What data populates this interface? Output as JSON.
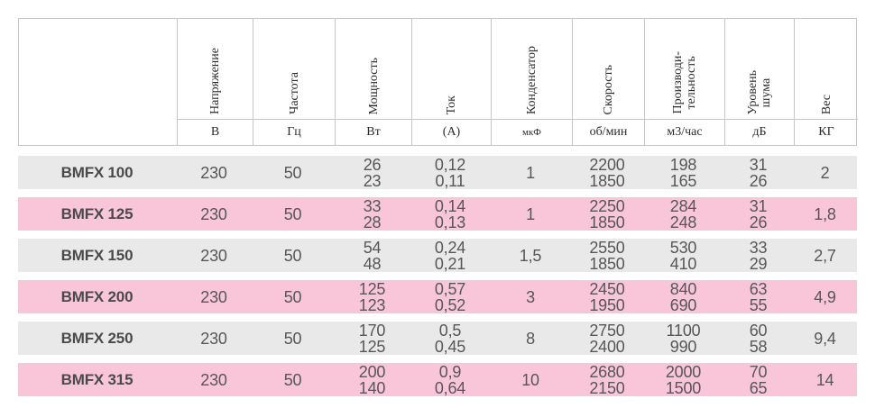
{
  "table": {
    "columns": [
      {
        "name": "Напряжение",
        "unit": "В"
      },
      {
        "name": "Частота",
        "unit": "Гц"
      },
      {
        "name": "Мощность",
        "unit": "Вт"
      },
      {
        "name": "Ток",
        "unit": "(А)"
      },
      {
        "name": "Конденсатор",
        "unit": "мкФ"
      },
      {
        "name": "Скорость",
        "unit": "об/мин"
      },
      {
        "name": "Производи-\nтельность",
        "unit": "м3/час"
      },
      {
        "name": "Уровень\nшума",
        "unit": "дБ"
      },
      {
        "name": "Вес",
        "unit": "КГ"
      }
    ],
    "rows": [
      {
        "model": "BMFX 100",
        "voltage": "230",
        "frequency": "50",
        "power": [
          "26",
          "23"
        ],
        "current": [
          "0,12",
          "0,11"
        ],
        "capacitor": "1",
        "speed": [
          "2200",
          "1850"
        ],
        "airflow": [
          "198",
          "165"
        ],
        "noise": [
          "31",
          "26"
        ],
        "weight": "2"
      },
      {
        "model": "BMFX 125",
        "voltage": "230",
        "frequency": "50",
        "power": [
          "33",
          "28"
        ],
        "current": [
          "0,14",
          "0,13"
        ],
        "capacitor": "1",
        "speed": [
          "2250",
          "1850"
        ],
        "airflow": [
          "284",
          "248"
        ],
        "noise": [
          "31",
          "26"
        ],
        "weight": "1,8"
      },
      {
        "model": "BMFX 150",
        "voltage": "230",
        "frequency": "50",
        "power": [
          "54",
          "48"
        ],
        "current": [
          "0,24",
          "0,21"
        ],
        "capacitor": "1,5",
        "speed": [
          "2550",
          "1850"
        ],
        "airflow": [
          "530",
          "410"
        ],
        "noise": [
          "33",
          "29"
        ],
        "weight": "2,7"
      },
      {
        "model": "BMFX 200",
        "voltage": "230",
        "frequency": "50",
        "power": [
          "125",
          "123"
        ],
        "current": [
          "0,57",
          "0,52"
        ],
        "capacitor": "3",
        "speed": [
          "2450",
          "1950"
        ],
        "airflow": [
          "840",
          "690"
        ],
        "noise": [
          "63",
          "55"
        ],
        "weight": "4,9"
      },
      {
        "model": "BMFX 250",
        "voltage": "230",
        "frequency": "50",
        "power": [
          "170",
          "125"
        ],
        "current": [
          "0,5",
          "0,45"
        ],
        "capacitor": "8",
        "speed": [
          "2750",
          "2400"
        ],
        "airflow": [
          "1100",
          "990"
        ],
        "noise": [
          "60",
          "58"
        ],
        "weight": "9,4"
      },
      {
        "model": "BMFX 315",
        "voltage": "230",
        "frequency": "50",
        "power": [
          "200",
          "140"
        ],
        "current": [
          "0,9",
          "0,64"
        ],
        "capacitor": "10",
        "speed": [
          "2680",
          "2150"
        ],
        "airflow": [
          "2000",
          "1500"
        ],
        "noise": [
          "70",
          "65"
        ],
        "weight": "14"
      }
    ]
  },
  "colors": {
    "row_gray": "#e9e9e9",
    "row_pink": "#f8c5d9",
    "border": "#c6c6c6",
    "data_text": "#57575a",
    "header_text": "#2e2a2c"
  }
}
